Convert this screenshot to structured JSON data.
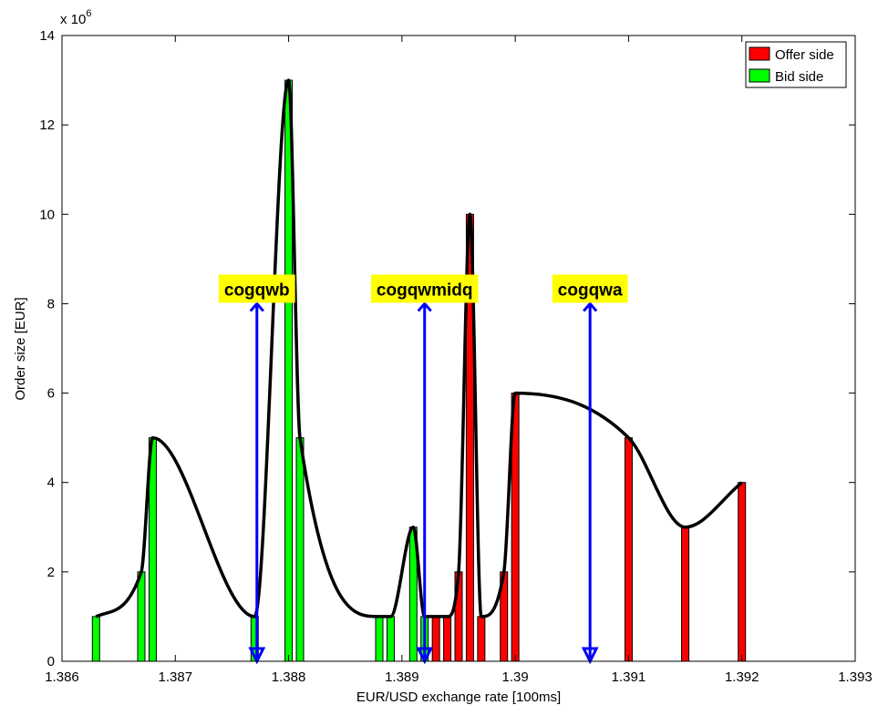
{
  "chart_data": {
    "type": "bar",
    "title": "",
    "xlabel": "EUR/USD exchange rate [100ms]",
    "ylabel": "Order size [EUR]",
    "y_exponent_label": "x 10",
    "y_exponent": "6",
    "xlim": [
      1.386,
      1.393
    ],
    "ylim": [
      0,
      14
    ],
    "x_ticks": [
      "1.386",
      "1.387",
      "1.388",
      "1.389",
      "1.39",
      "1.391",
      "1.392",
      "1.393"
    ],
    "x_tick_values": [
      1.386,
      1.387,
      1.388,
      1.389,
      1.39,
      1.391,
      1.392,
      1.393
    ],
    "y_ticks": [
      "0",
      "2",
      "4",
      "6",
      "8",
      "10",
      "12",
      "14"
    ],
    "y_tick_values": [
      0,
      2,
      4,
      6,
      8,
      10,
      12,
      14
    ],
    "grid": false,
    "legend_position": "top-right",
    "series": [
      {
        "name": "Offer side",
        "color": "#ff0000",
        "x": [
          1.3893,
          1.3894,
          1.3895,
          1.3896,
          1.3897,
          1.3899,
          1.39,
          1.391,
          1.3915,
          1.392
        ],
        "values": [
          1,
          1,
          2,
          10,
          1,
          2,
          6,
          5,
          3,
          4
        ]
      },
      {
        "name": "Bid side",
        "color": "#00ff00",
        "x": [
          1.3863,
          1.3867,
          1.3868,
          1.3877,
          1.388,
          1.3881,
          1.3888,
          1.3889,
          1.3891,
          1.3892
        ],
        "values": [
          1,
          2,
          5,
          1,
          13,
          5,
          1,
          1,
          3,
          1
        ]
      }
    ],
    "curve_points": [
      [
        1.3863,
        1
      ],
      [
        1.3867,
        2
      ],
      [
        1.3868,
        5
      ],
      [
        1.3877,
        1
      ],
      [
        1.388,
        13
      ],
      [
        1.3881,
        5
      ],
      [
        1.3888,
        1
      ],
      [
        1.3889,
        1
      ],
      [
        1.3891,
        3
      ],
      [
        1.3892,
        1
      ],
      [
        1.3893,
        1
      ],
      [
        1.3894,
        1
      ],
      [
        1.3895,
        2
      ],
      [
        1.3896,
        10
      ],
      [
        1.3897,
        1
      ],
      [
        1.3899,
        2
      ],
      [
        1.39,
        6
      ],
      [
        1.391,
        5
      ],
      [
        1.3915,
        3
      ],
      [
        1.392,
        4
      ]
    ],
    "annotations": [
      {
        "label": "cogqwb",
        "x": 1.38772,
        "y_top": 8
      },
      {
        "label": "cogqwmidq",
        "x": 1.3892,
        "y_top": 8
      },
      {
        "label": "cogqwa",
        "x": 1.39066,
        "y_top": 8
      }
    ],
    "arrow_color": "#0000ff",
    "annotation_bg": "#ffff00"
  }
}
